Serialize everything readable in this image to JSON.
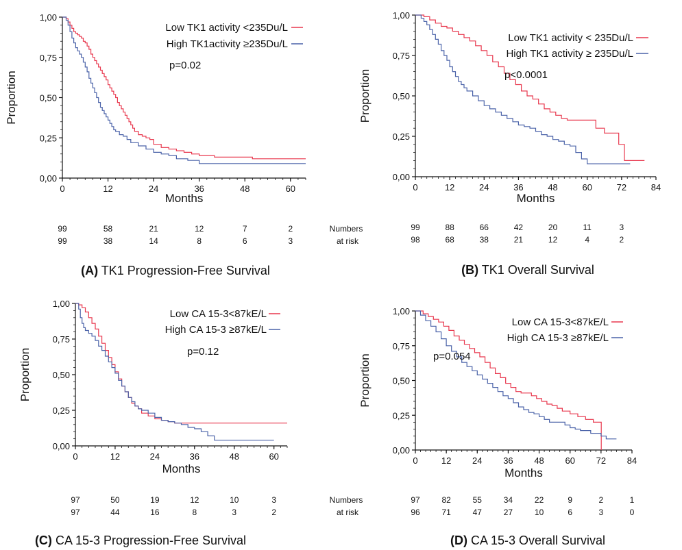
{
  "colors": {
    "low": "#e8374d",
    "high": "#4a62a8",
    "axis": "#111111"
  },
  "risk_label": {
    "line1": "Numbers",
    "line2": "at risk"
  },
  "chart_data": [
    {
      "type": "line",
      "panel": "(A)",
      "caption": "TK1 Progression-Free Survival",
      "xlabel": "Months",
      "ylabel": "Proportion",
      "xlim": [
        0,
        64
      ],
      "ylim": [
        0,
        1
      ],
      "xticks": [
        "0",
        "12",
        "24",
        "36",
        "48",
        "60"
      ],
      "yticks": [
        "0,00",
        "0,25",
        "0,50",
        "0,75",
        "1,00"
      ],
      "legend": [
        "Low TK1 activity <235Du/L",
        "High TK1activity  ≥235Du/L"
      ],
      "pvalue": "p=0.02",
      "series": [
        {
          "name": "Low TK1 activity <235Du/L",
          "color": "low",
          "x": [
            0,
            1,
            1.5,
            2,
            2.5,
            3,
            3.5,
            4,
            4.5,
            5,
            5.5,
            6,
            6.5,
            7,
            7.5,
            8,
            8.5,
            9,
            9.5,
            10,
            10.5,
            11,
            11.5,
            12,
            12.5,
            13,
            13.5,
            14,
            14.5,
            15,
            15.5,
            16,
            16.5,
            17,
            17.5,
            18,
            18.5,
            19,
            20,
            21,
            22,
            23,
            24,
            26,
            28,
            30,
            32,
            34,
            36,
            40,
            50,
            64
          ],
          "y": [
            1,
            0.99,
            0.97,
            0.95,
            0.93,
            0.91,
            0.9,
            0.89,
            0.88,
            0.87,
            0.85,
            0.84,
            0.82,
            0.8,
            0.77,
            0.75,
            0.73,
            0.71,
            0.69,
            0.67,
            0.65,
            0.63,
            0.61,
            0.58,
            0.56,
            0.54,
            0.52,
            0.5,
            0.47,
            0.45,
            0.43,
            0.41,
            0.39,
            0.37,
            0.35,
            0.33,
            0.31,
            0.29,
            0.27,
            0.26,
            0.25,
            0.24,
            0.21,
            0.19,
            0.18,
            0.17,
            0.16,
            0.15,
            0.14,
            0.13,
            0.12,
            0.12
          ]
        },
        {
          "name": "High TK1activity  ≥235Du/L",
          "color": "high",
          "x": [
            0,
            1,
            1.5,
            2,
            2.5,
            3,
            3.5,
            4,
            4.5,
            5,
            5.5,
            6,
            6.5,
            7,
            7.5,
            8,
            8.5,
            9,
            9.5,
            10,
            10.5,
            11,
            11.5,
            12,
            12.5,
            13,
            13.5,
            14,
            15,
            16,
            17,
            18,
            20,
            22,
            24,
            26,
            28,
            30,
            33,
            36,
            64
          ],
          "y": [
            1,
            0.98,
            0.95,
            0.91,
            0.87,
            0.84,
            0.81,
            0.79,
            0.77,
            0.75,
            0.72,
            0.69,
            0.66,
            0.62,
            0.59,
            0.56,
            0.53,
            0.5,
            0.47,
            0.44,
            0.42,
            0.4,
            0.38,
            0.36,
            0.34,
            0.32,
            0.3,
            0.29,
            0.27,
            0.26,
            0.24,
            0.22,
            0.2,
            0.18,
            0.16,
            0.15,
            0.14,
            0.12,
            0.11,
            0.09,
            0.09
          ]
        }
      ],
      "risk": {
        "low": [
          "99",
          "58",
          "21",
          "12",
          "7",
          "2"
        ],
        "high": [
          "99",
          "38",
          "14",
          "8",
          "6",
          "3"
        ]
      },
      "risk_x": [
        0,
        12,
        24,
        36,
        48,
        60
      ]
    },
    {
      "type": "line",
      "panel": "(B)",
      "caption": "TK1 Overall Survival",
      "xlabel": "Months",
      "ylabel": "Proportion",
      "xlim": [
        0,
        84
      ],
      "ylim": [
        0,
        1
      ],
      "xticks": [
        "0",
        "12",
        "24",
        "36",
        "48",
        "60",
        "72",
        "84"
      ],
      "yticks": [
        "0,00",
        "0,25",
        "0,50",
        "0,75",
        "1,00"
      ],
      "legend": [
        "Low  TK1 activity < 235Du/L",
        "High  TK1 activity ≥ 235Du/L"
      ],
      "pvalue": "p<0.0001",
      "series": [
        {
          "name": "Low  TK1 activity < 235Du/L",
          "color": "low",
          "x": [
            0,
            3,
            5,
            7,
            9,
            11,
            13,
            15,
            17,
            19,
            21,
            23,
            25,
            27,
            29,
            31,
            33,
            35,
            37,
            39,
            41,
            43,
            45,
            47,
            49,
            51,
            53,
            55,
            57,
            60,
            63,
            66,
            69,
            71,
            72,
            73,
            76,
            80
          ],
          "y": [
            1,
            0.99,
            0.97,
            0.95,
            0.93,
            0.92,
            0.9,
            0.88,
            0.86,
            0.84,
            0.81,
            0.78,
            0.75,
            0.71,
            0.68,
            0.64,
            0.6,
            0.57,
            0.53,
            0.5,
            0.48,
            0.45,
            0.42,
            0.4,
            0.38,
            0.36,
            0.35,
            0.35,
            0.35,
            0.35,
            0.3,
            0.27,
            0.27,
            0.2,
            0.2,
            0.1,
            0.1,
            0.1
          ]
        },
        {
          "name": "High  TK1 activity ≥ 235Du/L",
          "color": "high",
          "x": [
            0,
            2,
            3,
            4,
            5,
            6,
            7,
            8,
            9,
            10,
            11,
            12,
            13,
            14,
            15,
            16,
            17,
            18,
            20,
            22,
            24,
            26,
            28,
            30,
            32,
            34,
            36,
            38,
            40,
            42,
            44,
            46,
            48,
            50,
            52,
            54,
            56,
            58,
            60,
            64,
            68,
            72,
            75
          ],
          "y": [
            1,
            0.98,
            0.96,
            0.94,
            0.91,
            0.88,
            0.85,
            0.82,
            0.78,
            0.75,
            0.72,
            0.68,
            0.65,
            0.62,
            0.59,
            0.57,
            0.55,
            0.53,
            0.5,
            0.47,
            0.44,
            0.42,
            0.4,
            0.38,
            0.36,
            0.34,
            0.32,
            0.31,
            0.3,
            0.28,
            0.26,
            0.25,
            0.23,
            0.22,
            0.2,
            0.19,
            0.15,
            0.11,
            0.08,
            0.08,
            0.08,
            0.08,
            0.08
          ]
        }
      ],
      "risk": {
        "low": [
          "99",
          "88",
          "66",
          "42",
          "20",
          "11",
          "3"
        ],
        "high": [
          "98",
          "68",
          "38",
          "21",
          "12",
          "4",
          "2"
        ]
      },
      "risk_x": [
        0,
        12,
        24,
        36,
        48,
        60,
        72
      ]
    },
    {
      "type": "line",
      "panel": "(C)",
      "caption": "CA 15-3 Progression-Free Survival",
      "xlabel": "Months",
      "ylabel": "Proportion",
      "xlim": [
        0,
        64
      ],
      "ylim": [
        0,
        1
      ],
      "xticks": [
        "0",
        "12",
        "24",
        "36",
        "48",
        "60"
      ],
      "yticks": [
        "0,00",
        "0,25",
        "0,50",
        "0,75",
        "1,00"
      ],
      "legend": [
        "Low  CA 15-3<87kE/L",
        "High CA 15-3 ≥87kE/L"
      ],
      "pvalue": "p=0.12",
      "series": [
        {
          "name": "Low  CA 15-3<87kE/L",
          "color": "low",
          "x": [
            0,
            1,
            2,
            3,
            4,
            5,
            6,
            7,
            8,
            9,
            10,
            11,
            12,
            13,
            14,
            15,
            16,
            17,
            18,
            19,
            20,
            22,
            24,
            26,
            28,
            30,
            32,
            64
          ],
          "y": [
            1,
            0.99,
            0.97,
            0.94,
            0.9,
            0.86,
            0.82,
            0.77,
            0.72,
            0.67,
            0.62,
            0.57,
            0.52,
            0.47,
            0.42,
            0.38,
            0.34,
            0.3,
            0.28,
            0.26,
            0.23,
            0.21,
            0.19,
            0.18,
            0.17,
            0.16,
            0.16,
            0.16
          ]
        },
        {
          "name": "High CA 15-3 ≥87kE/L",
          "color": "high",
          "x": [
            0,
            1,
            1.5,
            2,
            2.5,
            3,
            4,
            5,
            6,
            7,
            8,
            9,
            10,
            11,
            12,
            13,
            14,
            15,
            16,
            17,
            18,
            19,
            20,
            22,
            24,
            26,
            28,
            30,
            32,
            34,
            36,
            38,
            40,
            42,
            60
          ],
          "y": [
            1,
            0.96,
            0.9,
            0.86,
            0.83,
            0.81,
            0.79,
            0.77,
            0.74,
            0.7,
            0.67,
            0.63,
            0.59,
            0.55,
            0.51,
            0.46,
            0.42,
            0.38,
            0.34,
            0.31,
            0.28,
            0.26,
            0.25,
            0.23,
            0.2,
            0.18,
            0.17,
            0.16,
            0.15,
            0.13,
            0.12,
            0.1,
            0.07,
            0.04,
            0.04
          ]
        }
      ],
      "risk": {
        "low": [
          "97",
          "50",
          "19",
          "12",
          "10",
          "3"
        ],
        "high": [
          "97",
          "44",
          "16",
          "8",
          "3",
          "2"
        ]
      },
      "risk_x": [
        0,
        12,
        24,
        36,
        48,
        60
      ]
    },
    {
      "type": "line",
      "panel": "(D)",
      "caption": "CA 15-3 Overall Survival",
      "xlabel": "Months",
      "ylabel": "Proportion",
      "xlim": [
        0,
        84
      ],
      "ylim": [
        0,
        1
      ],
      "xticks": [
        "0",
        "12",
        "24",
        "36",
        "48",
        "60",
        "72",
        "84"
      ],
      "yticks": [
        "0,00",
        "0,25",
        "0,50",
        "0,75",
        "1,00"
      ],
      "legend": [
        "Low CA 15-3<87kE/L",
        "High CA 15-3 ≥87kE/L"
      ],
      "pvalue": "p=0.054",
      "series": [
        {
          "name": "Low CA 15-3<87kE/L",
          "color": "low",
          "x": [
            0,
            3,
            5,
            7,
            9,
            11,
            13,
            15,
            17,
            19,
            21,
            23,
            25,
            27,
            29,
            31,
            33,
            35,
            37,
            39,
            41,
            43,
            45,
            47,
            49,
            51,
            53,
            55,
            57,
            60,
            63,
            66,
            69,
            72,
            72.1
          ],
          "y": [
            1,
            0.98,
            0.96,
            0.94,
            0.92,
            0.89,
            0.86,
            0.82,
            0.79,
            0.76,
            0.73,
            0.7,
            0.67,
            0.63,
            0.59,
            0.55,
            0.52,
            0.48,
            0.45,
            0.42,
            0.41,
            0.41,
            0.39,
            0.37,
            0.35,
            0.33,
            0.32,
            0.3,
            0.28,
            0.26,
            0.24,
            0.22,
            0.2,
            0.2,
            0
          ]
        },
        {
          "name": "High CA 15-3 ≥87kE/L",
          "color": "high",
          "x": [
            0,
            2,
            4,
            6,
            8,
            10,
            12,
            14,
            16,
            18,
            20,
            22,
            24,
            26,
            28,
            30,
            32,
            34,
            36,
            38,
            40,
            42,
            44,
            46,
            48,
            50,
            52,
            54,
            56,
            58,
            60,
            62,
            64,
            66,
            68,
            70,
            72,
            74,
            78
          ],
          "y": [
            1,
            0.97,
            0.93,
            0.89,
            0.85,
            0.8,
            0.75,
            0.71,
            0.67,
            0.63,
            0.6,
            0.57,
            0.54,
            0.51,
            0.48,
            0.45,
            0.42,
            0.39,
            0.37,
            0.34,
            0.31,
            0.29,
            0.27,
            0.26,
            0.24,
            0.22,
            0.2,
            0.2,
            0.2,
            0.18,
            0.16,
            0.15,
            0.14,
            0.14,
            0.12,
            0.12,
            0.1,
            0.08,
            0.08
          ]
        }
      ],
      "risk": {
        "low": [
          "97",
          "82",
          "55",
          "34",
          "22",
          "9",
          "2",
          "1"
        ],
        "high": [
          "96",
          "71",
          "47",
          "27",
          "10",
          "6",
          "3",
          "0"
        ]
      },
      "risk_x": [
        0,
        12,
        24,
        36,
        48,
        60,
        72,
        84
      ]
    }
  ]
}
